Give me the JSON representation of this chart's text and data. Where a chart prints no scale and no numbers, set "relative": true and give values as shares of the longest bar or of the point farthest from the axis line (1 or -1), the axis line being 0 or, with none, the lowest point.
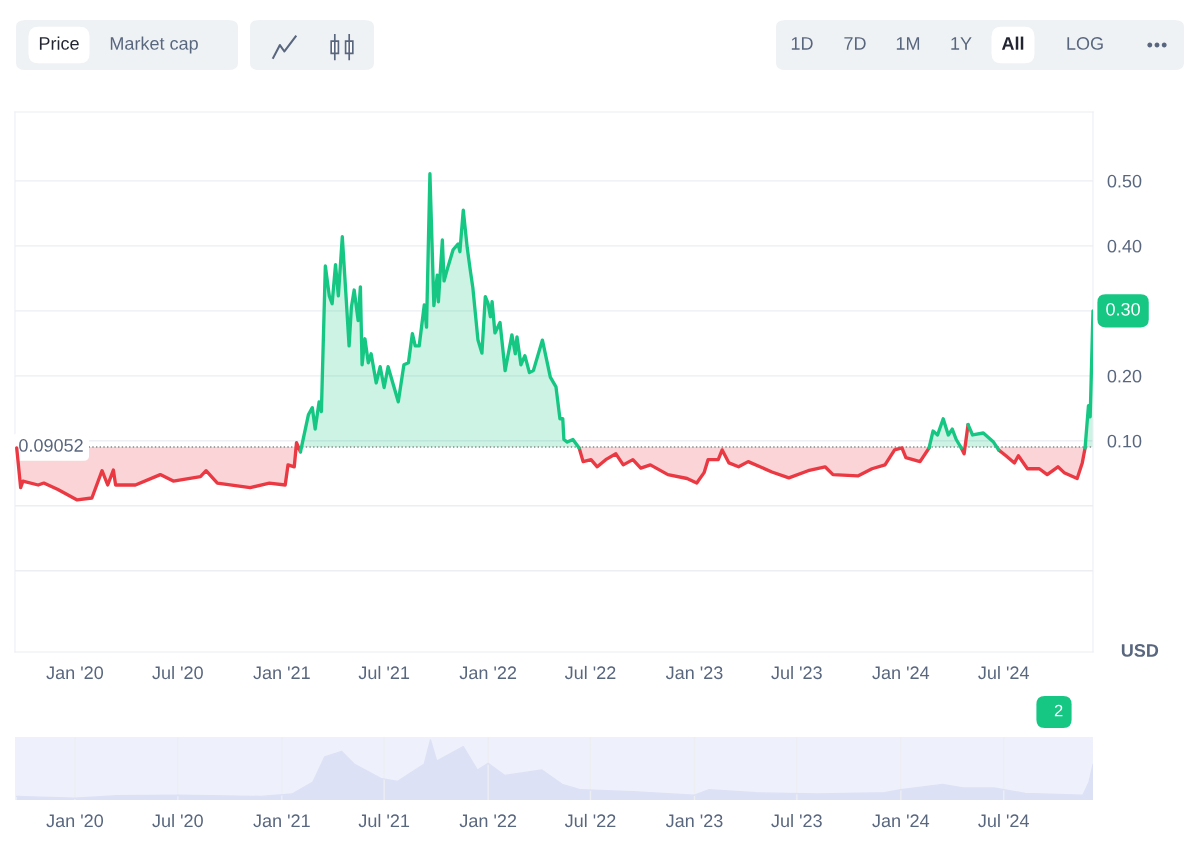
{
  "chart_data": [
    {
      "type": "line",
      "series": [
        {
          "color": "#ea3943",
          "x": [
            "2019-09-20",
            "2019-09-27",
            "2019-10-01",
            "2019-10-28",
            "2019-11-07",
            "2019-12-02",
            "2020-01-05",
            "2020-01-31",
            "2020-02-18",
            "2020-02-28",
            "2020-03-09",
            "2020-03-13",
            "2020-04-17",
            "2020-05-31",
            "2020-06-23",
            "2020-08-10",
            "2020-08-20",
            "2020-09-09",
            "2020-11-06",
            "2020-12-10",
            "2021-01-07",
            "2021-01-12",
            "2021-01-23",
            "2021-01-27",
            "2021-02-03",
            null,
            "2022-06-11",
            "2022-06-18",
            "2022-07-02",
            "2022-07-13",
            "2022-07-28",
            "2022-08-15",
            "2022-08-28",
            "2022-09-14",
            "2022-09-28",
            "2022-10-15",
            "2022-11-15",
            "2022-12-19",
            "2023-01-05",
            "2023-01-18",
            "2023-01-25",
            "2023-02-12",
            "2023-02-19",
            "2023-03-03",
            "2023-03-20",
            "2023-04-06",
            "2023-04-27",
            "2023-05-18",
            "2023-06-17",
            "2023-07-21",
            "2023-08-20",
            "2023-09-03",
            "2023-10-17",
            "2023-11-11",
            "2023-12-04",
            "2023-12-21",
            "2024-01-03",
            "2024-01-10",
            "2024-02-04",
            "2024-02-20",
            null,
            "2024-04-17",
            "2024-04-22",
            "2024-04-29",
            null,
            "2024-06-22",
            "2024-07-05",
            "2024-07-20",
            "2024-07-27",
            "2024-08-12",
            "2024-09-02",
            "2024-09-16",
            "2024-10-05",
            "2024-10-16",
            "2024-11-08",
            "2024-11-17",
            "2024-11-22"
          ],
          "values": [
            0.089,
            0.028,
            0.038,
            0.032,
            0.035,
            0.025,
            0.009,
            0.012,
            0.054,
            0.032,
            0.055,
            0.032,
            0.032,
            0.048,
            0.038,
            0.045,
            0.054,
            0.035,
            0.028,
            0.035,
            0.032,
            0.063,
            0.06,
            0.097,
            0.083,
            null,
            0.089,
            0.068,
            0.071,
            0.06,
            0.071,
            0.08,
            0.063,
            0.071,
            0.058,
            0.063,
            0.048,
            0.042,
            0.035,
            0.051,
            0.071,
            0.071,
            0.086,
            0.066,
            0.06,
            0.068,
            0.06,
            0.052,
            0.043,
            0.054,
            0.06,
            0.048,
            0.046,
            0.057,
            0.063,
            0.086,
            0.089,
            0.074,
            0.068,
            0.089,
            null,
            0.089,
            0.08,
            0.125,
            null,
            0.086,
            0.077,
            0.066,
            0.077,
            0.057,
            0.057,
            0.048,
            0.06,
            0.051,
            0.042,
            0.066,
            0.089
          ]
        },
        {
          "color": "#16c784",
          "x": [
            "2021-02-03",
            "2021-02-17",
            "2021-02-24",
            "2021-03-01",
            "2021-03-08",
            "2021-03-12",
            "2021-03-19",
            "2021-03-26",
            "2021-03-31",
            "2021-04-06",
            "2021-04-11",
            "2021-04-18",
            "2021-04-25",
            "2021-04-30",
            "2021-05-04",
            "2021-05-09",
            "2021-05-16",
            "2021-05-20",
            "2021-05-23",
            "2021-05-28",
            "2021-06-03",
            "2021-06-08",
            "2021-06-17",
            "2021-06-24",
            "2021-07-01",
            "2021-07-08",
            "2021-07-26",
            "2021-08-05",
            "2021-08-13",
            "2021-08-20",
            "2021-08-25",
            "2021-09-01",
            "2021-09-10",
            "2021-09-14",
            "2021-09-20",
            "2021-09-27",
            "2021-10-03",
            "2021-10-05",
            "2021-10-12",
            "2021-10-15",
            "2021-10-22",
            "2021-10-31",
            "2021-11-09",
            "2021-11-12",
            "2021-11-18",
            "2021-11-25",
            "2021-11-30",
            "2021-12-05",
            "2021-12-14",
            "2021-12-21",
            "2021-12-27",
            "2022-01-01",
            "2022-01-05",
            "2022-01-08",
            "2022-01-13",
            "2022-01-22",
            "2022-01-31",
            "2022-02-12",
            "2022-02-18",
            "2022-02-21",
            "2022-02-28",
            "2022-03-07",
            "2022-03-15",
            "2022-03-22",
            "2022-04-07",
            "2022-04-21",
            "2022-05-01",
            "2022-05-08",
            "2022-05-13",
            "2022-05-15",
            "2022-05-21",
            "2022-05-31",
            "2022-06-11",
            null,
            "2024-02-20",
            "2024-02-27",
            "2024-03-06",
            "2024-03-16",
            "2024-03-25",
            "2024-04-01",
            "2024-04-08",
            "2024-04-17",
            null,
            "2024-04-29",
            "2024-05-07",
            "2024-05-26",
            "2024-06-13",
            "2024-06-22",
            null,
            "2024-11-22",
            "2024-11-28",
            "2024-12-01",
            "2024-12-06"
          ],
          "values": [
            0.083,
            0.14,
            0.151,
            0.118,
            0.16,
            0.145,
            0.369,
            0.323,
            0.311,
            0.371,
            0.323,
            0.414,
            0.317,
            0.246,
            0.305,
            0.332,
            0.285,
            0.337,
            0.217,
            0.257,
            0.22,
            0.234,
            0.189,
            0.214,
            0.182,
            0.214,
            0.16,
            0.217,
            0.22,
            0.265,
            0.246,
            0.246,
            0.309,
            0.275,
            0.511,
            0.308,
            0.355,
            0.314,
            0.409,
            0.346,
            0.368,
            0.394,
            0.403,
            0.391,
            0.455,
            0.397,
            0.365,
            0.335,
            0.255,
            0.235,
            0.322,
            0.311,
            0.291,
            0.314,
            0.266,
            0.282,
            0.208,
            0.263,
            0.234,
            0.26,
            0.217,
            0.231,
            0.205,
            0.208,
            0.255,
            0.198,
            0.183,
            0.134,
            0.134,
            0.102,
            0.098,
            0.102,
            0.089,
            null,
            0.089,
            0.115,
            0.109,
            0.134,
            0.109,
            0.118,
            0.102,
            0.089,
            null,
            0.125,
            0.109,
            0.112,
            0.098,
            0.086,
            null,
            0.089,
            0.154,
            0.137,
            0.3
          ]
        }
      ],
      "xlim": [
        "2019-09-17",
        "2024-12-06"
      ],
      "xticks": [
        {
          "value": "2020-01-01",
          "label": "Jan '20"
        },
        {
          "value": "2020-07-01",
          "label": "Jul '20"
        },
        {
          "value": "2021-01-01",
          "label": "Jan '21"
        },
        {
          "value": "2021-07-01",
          "label": "Jul '21"
        },
        {
          "value": "2022-01-01",
          "label": "Jan '22"
        },
        {
          "value": "2022-07-01",
          "label": "Jul '22"
        },
        {
          "value": "2023-01-01",
          "label": "Jan '23"
        },
        {
          "value": "2023-07-01",
          "label": "Jul '23"
        },
        {
          "value": "2024-01-01",
          "label": "Jan '24"
        },
        {
          "value": "2024-07-01",
          "label": "Jul '24"
        }
      ],
      "ylim": [
        -0.225,
        0.606
      ],
      "yticks": [
        {
          "value": -0.1,
          "label": null
        },
        {
          "value": 0,
          "label": null
        },
        {
          "value": 0.1,
          "label": "0.10"
        },
        {
          "value": 0.2,
          "label": "0.20"
        },
        {
          "value": 0.3,
          "label": null
        },
        {
          "value": 0.4,
          "label": "0.40"
        },
        {
          "value": 0.5,
          "label": "0.50"
        }
      ],
      "grid": "y",
      "ylabel": "USD",
      "ref_lines": [
        {
          "axis": "y",
          "value": 0.09052,
          "label": "0.09052",
          "color": "#888888",
          "line_style": "dotted"
        }
      ],
      "annotations": [
        "Price",
        "Market cap",
        "1D",
        "7D",
        "1M",
        "1Y",
        "All",
        "LOG",
        "2",
        {
          "text": "0.30",
          "x": "2024-12-06",
          "y": 0.3
        }
      ]
    },
    {
      "type": "area",
      "relative": true,
      "color": "#dde1f6",
      "x": [
        "2019-09-20",
        "2020-01-01",
        "2020-03-15",
        "2020-07-02",
        "2020-11-25",
        "2021-01-19",
        "2021-02-25",
        "2021-03-18",
        "2021-04-17",
        "2021-05-09",
        "2021-06-25",
        "2021-07-25",
        "2021-09-10",
        "2021-09-21",
        "2021-10-02",
        "2021-11-18",
        "2021-12-13",
        "2022-01-01",
        "2022-01-30",
        "2022-04-06",
        "2022-05-12",
        "2022-06-14",
        "2022-09-13",
        "2023-01-01",
        "2023-01-26",
        "2023-04-20",
        "2023-08-08",
        "2023-12-03",
        "2024-01-01",
        "2024-03-15",
        "2024-04-20",
        "2024-06-14",
        "2024-08-08",
        "2024-11-18",
        "2024-11-29",
        "2024-12-06"
      ],
      "values": [
        0.06,
        0.03,
        0.07,
        0.08,
        0.06,
        0.1,
        0.3,
        0.72,
        0.81,
        0.6,
        0.36,
        0.31,
        0.6,
        1.0,
        0.65,
        0.89,
        0.5,
        0.61,
        0.41,
        0.5,
        0.26,
        0.17,
        0.14,
        0.08,
        0.17,
        0.12,
        0.1,
        0.12,
        0.17,
        0.26,
        0.2,
        0.2,
        0.11,
        0.08,
        0.3,
        0.59
      ],
      "xlim": [
        "2019-09-17",
        "2024-12-06"
      ],
      "xticks": [
        {
          "value": "2020-01-01",
          "label": "Jan '20"
        },
        {
          "value": "2020-07-01",
          "label": "Jul '20"
        },
        {
          "value": "2021-01-01",
          "label": "Jan '21"
        },
        {
          "value": "2021-07-01",
          "label": "Jul '21"
        },
        {
          "value": "2022-01-01",
          "label": "Jan '22"
        },
        {
          "value": "2022-07-01",
          "label": "Jul '22"
        },
        {
          "value": "2023-01-01",
          "label": "Jan '23"
        },
        {
          "value": "2023-07-01",
          "label": "Jul '23"
        },
        {
          "value": "2024-01-01",
          "label": "Jan '24"
        },
        {
          "value": "2024-07-01",
          "label": "Jul '24"
        }
      ],
      "grid": "x"
    }
  ]
}
